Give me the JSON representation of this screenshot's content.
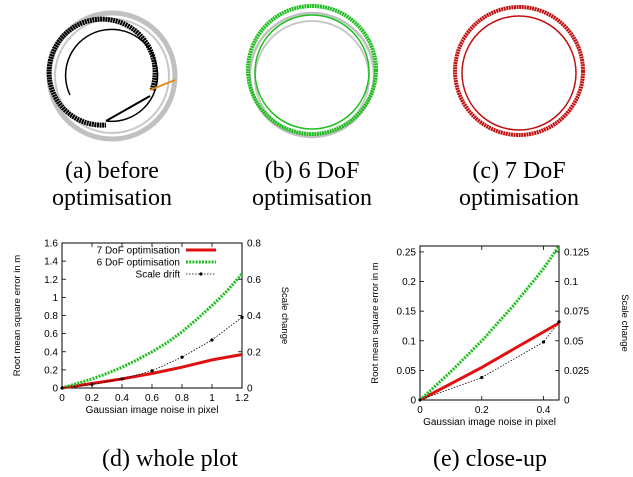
{
  "panels": [
    {
      "caption_line1": "(a) before",
      "caption_line2": "optimisation",
      "colors": {
        "primary": "#000000",
        "ground_truth": "#c0c0c0",
        "loop": "#e88a1a"
      }
    },
    {
      "caption_line1": "(b) 6 DoF",
      "caption_line2": "optimisation",
      "colors": {
        "primary": "#1fbf1f",
        "ground_truth": "#c0c0c0"
      }
    },
    {
      "caption_line1": "(c) 7 DoF",
      "caption_line2": "optimisation",
      "colors": {
        "primary": "#c01010",
        "ground_truth": "#c0c0c0"
      }
    }
  ],
  "captions": {
    "d": "(d) whole plot",
    "e": "(e) close-up"
  },
  "chart_data": [
    {
      "type": "line",
      "xlabel": "Gaussian image noise in pixel",
      "ylabel": "Root mean square error in m",
      "y2label": "Scale change",
      "xlim": [
        0,
        1.2
      ],
      "ylim": [
        0,
        1.6
      ],
      "y2lim": [
        0,
        0.8
      ],
      "xticks": [
        "0",
        "0.2",
        "0.4",
        "0.6",
        "0.8",
        "1",
        "1.2"
      ],
      "yticks": [
        "0",
        "0.2",
        "0.4",
        "0.6",
        "0.8",
        "1",
        "1.2",
        "1.4",
        "1.6"
      ],
      "y2ticks": [
        "0",
        "0.2",
        "0.4",
        "0.6",
        "0.8"
      ],
      "legend": "top-right",
      "series": [
        {
          "name": "7 DoF optimisation",
          "color": "#e01010",
          "axis": "y",
          "x": [
            0,
            0.2,
            0.4,
            0.6,
            0.8,
            1.0,
            1.2
          ],
          "y": [
            0,
            0.05,
            0.1,
            0.16,
            0.23,
            0.31,
            0.37
          ]
        },
        {
          "name": "6 DoF optimisation",
          "color": "#1fbf1f",
          "axis": "y",
          "x": [
            0,
            0.1,
            0.2,
            0.3,
            0.4,
            0.5,
            0.6,
            0.7,
            0.8,
            0.9,
            1.0,
            1.1,
            1.2
          ],
          "y": [
            0,
            0.05,
            0.1,
            0.16,
            0.23,
            0.31,
            0.4,
            0.5,
            0.62,
            0.76,
            0.91,
            1.07,
            1.26
          ]
        },
        {
          "name": "Scale drift",
          "color": "#000000",
          "axis": "y2",
          "x": [
            0,
            0.2,
            0.4,
            0.6,
            0.8,
            1.0,
            1.2
          ],
          "y": [
            0,
            0.02,
            0.05,
            0.095,
            0.17,
            0.265,
            0.39
          ]
        }
      ]
    },
    {
      "type": "line",
      "xlabel": "Gaussian image noise in pixel",
      "ylabel": "Root mean square error in m",
      "y2label": "Scale change",
      "xlim": [
        0,
        0.45
      ],
      "ylim": [
        0,
        0.26
      ],
      "y2lim": [
        0,
        0.13
      ],
      "xticks": [
        "0",
        "0.2",
        "0.4"
      ],
      "yticks": [
        "0",
        "0.05",
        "0.1",
        "0.15",
        "0.2",
        "0.25"
      ],
      "y2ticks": [
        "0",
        "0.025",
        "0.05",
        "0.075",
        "0.1",
        "0.125"
      ],
      "series": [
        {
          "name": "7 DoF optimisation",
          "color": "#e01010",
          "axis": "y",
          "x": [
            0,
            0.2,
            0.45
          ],
          "y": [
            0,
            0.055,
            0.13
          ]
        },
        {
          "name": "6 DoF optimisation",
          "color": "#1fbf1f",
          "axis": "y",
          "x": [
            0,
            0.1,
            0.2,
            0.3,
            0.4,
            0.45
          ],
          "y": [
            0,
            0.048,
            0.1,
            0.158,
            0.222,
            0.26
          ]
        },
        {
          "name": "Scale drift",
          "color": "#000000",
          "axis": "y2",
          "x": [
            0,
            0.2,
            0.4,
            0.45
          ],
          "y": [
            0,
            0.019,
            0.049,
            0.066
          ]
        }
      ]
    }
  ]
}
